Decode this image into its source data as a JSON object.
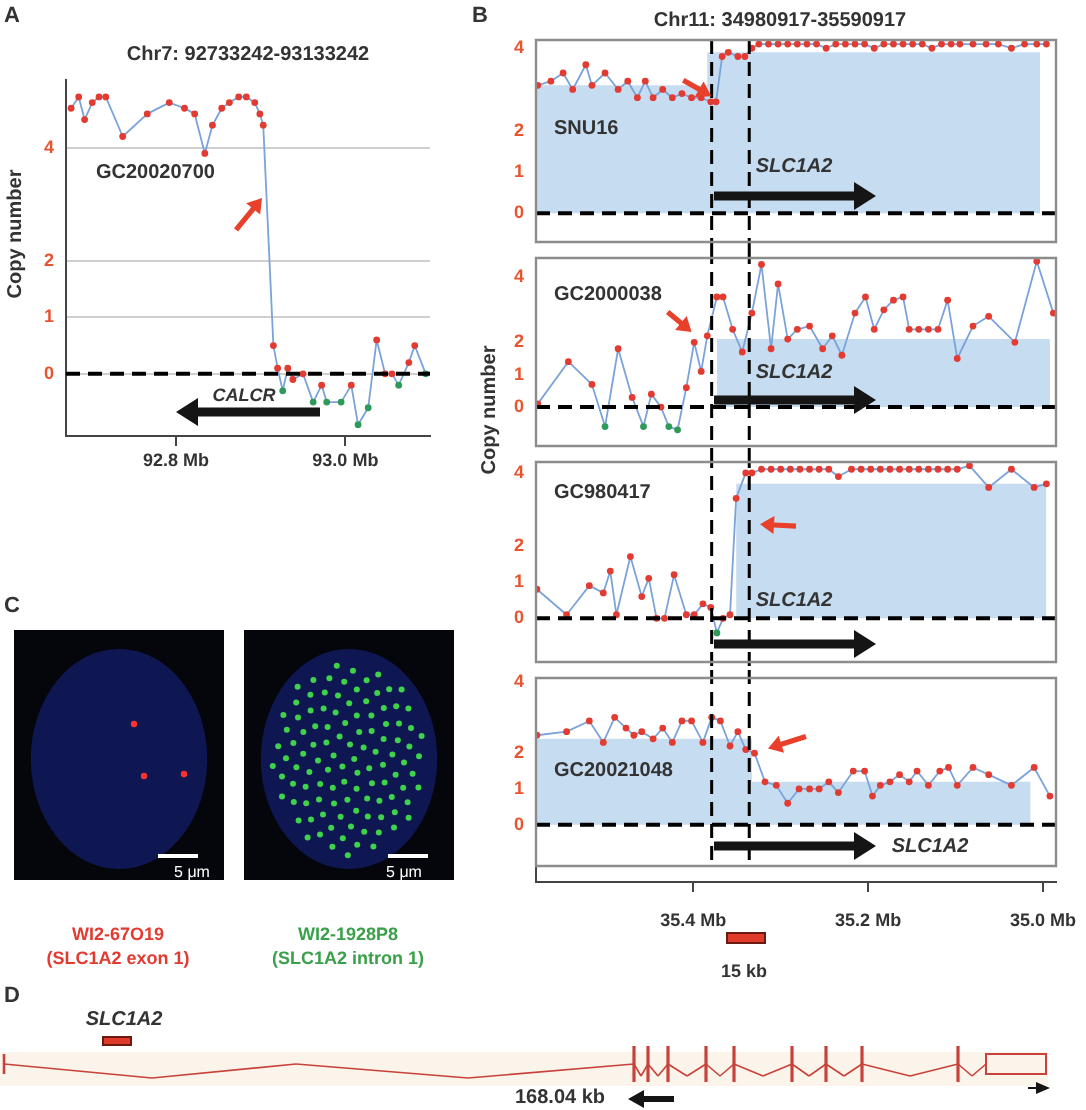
{
  "chart_data": [
    {
      "type": "line",
      "title": "Chr7: 92733242-93133242",
      "ylabel": "Copy number",
      "annotations": [
        "A",
        "GC20020700",
        "CALCR"
      ],
      "xlim": [
        92.67,
        93.1
      ],
      "xticks": [
        {
          "value": 92.8,
          "label": "92.8 Mb"
        },
        {
          "value": 93.0,
          "label": "93.0 Mb"
        }
      ],
      "ylim": [
        -1.1,
        5.2
      ],
      "yticks": [
        0,
        1,
        2,
        4
      ],
      "grid": "y",
      "marker": "circle",
      "ref_lines": [
        {
          "axis": "y",
          "value": 0,
          "color": "#000000",
          "line_style": "dashed"
        }
      ],
      "series": [
        {
          "type": "line",
          "color": "#7ba3d9",
          "x": [
            92.676,
            92.685,
            92.692,
            92.701,
            92.709,
            92.717,
            92.737,
            92.766,
            92.792,
            92.81,
            92.822,
            92.834,
            92.843,
            92.854,
            92.863,
            92.874,
            92.883,
            92.893,
            92.899,
            92.903,
            92.915,
            92.92,
            92.926,
            92.932,
            92.938,
            92.95,
            92.962,
            92.972,
            92.978,
            92.995,
            93.007,
            93.015,
            93.027,
            93.037,
            93.047,
            93.055,
            93.063,
            93.075,
            93.082,
            93.095
          ],
          "values": [
            4.7,
            4.9,
            4.5,
            4.8,
            4.9,
            4.9,
            4.2,
            4.6,
            4.8,
            4.7,
            4.6,
            3.9,
            4.4,
            4.7,
            4.8,
            4.9,
            4.9,
            4.8,
            4.6,
            4.4,
            0.5,
            0.1,
            -0.3,
            0.1,
            -0.1,
            0,
            -0.5,
            -0.2,
            -0.5,
            -0.5,
            -0.2,
            -0.9,
            -0.6,
            0.6,
            0,
            0,
            -0.2,
            0.2,
            0.5,
            0
          ],
          "colors": [
            "#e23b32",
            "#e23b32",
            "#e23b32",
            "#e23b32",
            "#e23b32",
            "#e23b32",
            "#e23b32",
            "#e23b32",
            "#e23b32",
            "#e23b32",
            "#e23b32",
            "#e23b32",
            "#e23b32",
            "#e23b32",
            "#e23b32",
            "#e23b32",
            "#e23b32",
            "#e23b32",
            "#e23b32",
            "#e23b32",
            "#e23b32",
            "#e23b32",
            "#2e9a57",
            "#e23b32",
            "#e23b32",
            "#e23b32",
            "#2e9a57",
            "#e23b32",
            "#2e9a57",
            "#2e9a57",
            "#e23b32",
            "#2e9a57",
            "#2e9a57",
            "#e23b32",
            "#e23b32",
            "#e23b32",
            "#2e9a57",
            "#e23b32",
            "#e23b32",
            "#2e9a57"
          ]
        }
      ]
    },
    {
      "type": "line",
      "title": "Chr11: 34980917-35590917",
      "annotations": [
        "B",
        "SNU16",
        "SLC1A2"
      ],
      "xlim": [
        35.58,
        34.985
      ],
      "tick_labels": "y",
      "ylim": [
        -0.7,
        4.2
      ],
      "yticks": [
        0,
        1,
        2,
        4
      ],
      "ref_lines": [
        {
          "axis": "y",
          "value": 0,
          "color": "#000000",
          "line_style": "dashed"
        },
        {
          "axis": "x",
          "value": 35.379,
          "color": "#000000",
          "line_style": "dashed"
        },
        {
          "axis": "x",
          "value": 35.336,
          "color": "#000000",
          "line_style": "dashed"
        }
      ],
      "series": [
        {
          "type": "area",
          "color": "#c6dcf0",
          "x": [
            35.58,
            35.384,
            35.384,
            35.003
          ],
          "values": [
            3.1,
            3.1,
            3.9,
            3.9
          ]
        },
        {
          "type": "line",
          "color": "#7ba3d9",
          "marker": "circle",
          "x": [
            35.578,
            35.563,
            35.549,
            35.538,
            35.523,
            35.516,
            35.501,
            35.486,
            35.475,
            35.464,
            35.455,
            35.446,
            35.435,
            35.424,
            35.413,
            35.402,
            35.391,
            35.38,
            35.374,
            35.367,
            35.36,
            35.349,
            35.341,
            35.333,
            35.325,
            35.314,
            35.303,
            35.292,
            35.281,
            35.27,
            35.259,
            35.248,
            35.237,
            35.226,
            35.215,
            35.204,
            35.193,
            35.182,
            35.171,
            35.16,
            35.149,
            35.138,
            35.127,
            35.116,
            35.105,
            35.095,
            35.08,
            35.065,
            35.051,
            35.036,
            35.021,
            35.007,
            34.996
          ],
          "values": [
            3.1,
            3.2,
            3.4,
            3.0,
            3.6,
            3.1,
            3.4,
            3.0,
            3.2,
            2.8,
            3.2,
            2.8,
            3.0,
            2.8,
            2.9,
            2.8,
            2.8,
            2.7,
            2.7,
            3.8,
            3.9,
            3.8,
            3.8,
            4.0,
            4.1,
            4.1,
            4.1,
            4.1,
            4.1,
            4.1,
            4.1,
            4.0,
            4.1,
            4.1,
            4.1,
            4.1,
            4.0,
            4.1,
            4.1,
            4.1,
            4.1,
            4.1,
            4.0,
            4.1,
            4.1,
            4.1,
            4.1,
            4.1,
            4.1,
            4.0,
            4.1,
            4.1,
            4.1
          ],
          "colors": [
            "#e23b32",
            "#e23b32",
            "#e23b32",
            "#e23b32",
            "#e23b32",
            "#e23b32",
            "#e23b32",
            "#e23b32",
            "#e23b32",
            "#e23b32",
            "#e23b32",
            "#e23b32",
            "#e23b32",
            "#e23b32",
            "#e23b32",
            "#e23b32",
            "#e23b32",
            "#e23b32",
            "#e23b32",
            "#e23b32",
            "#e23b32",
            "#e23b32",
            "#e23b32",
            "#e23b32",
            "#e23b32",
            "#e23b32",
            "#e23b32",
            "#e23b32",
            "#e23b32",
            "#e23b32",
            "#e23b32",
            "#e23b32",
            "#e23b32",
            "#e23b32",
            "#e23b32",
            "#e23b32",
            "#e23b32",
            "#e23b32",
            "#e23b32",
            "#e23b32",
            "#e23b32",
            "#e23b32",
            "#e23b32",
            "#e23b32",
            "#e23b32",
            "#e23b32",
            "#e23b32",
            "#e23b32",
            "#e23b32",
            "#e23b32",
            "#e23b32",
            "#e23b32",
            "#e23b32"
          ]
        }
      ]
    },
    {
      "type": "line",
      "ylabel": "Copy number",
      "annotations": [
        "GC2000038",
        "SLC1A2"
      ],
      "xlim": [
        35.58,
        34.985
      ],
      "tick_labels": "y",
      "ylim": [
        -1.2,
        4.6
      ],
      "yticks": [
        0,
        1,
        2,
        4
      ],
      "ref_lines": [
        {
          "axis": "y",
          "value": 0,
          "color": "#000000",
          "line_style": "dashed"
        },
        {
          "axis": "x",
          "value": 35.379,
          "color": "#000000",
          "line_style": "dashed"
        },
        {
          "axis": "x",
          "value": 35.336,
          "color": "#000000",
          "line_style": "dashed"
        }
      ],
      "series": [
        {
          "type": "area",
          "color": "#c6dcf0",
          "x": [
            35.373,
            34.992
          ],
          "values": [
            2.1,
            2.1
          ]
        },
        {
          "type": "line",
          "color": "#7ba3d9",
          "marker": "circle",
          "x": [
            35.578,
            35.543,
            35.516,
            35.501,
            35.486,
            35.47,
            35.457,
            35.448,
            35.437,
            35.428,
            35.418,
            35.408,
            35.399,
            35.391,
            35.384,
            35.373,
            35.366,
            35.355,
            35.344,
            35.333,
            35.322,
            35.311,
            35.303,
            35.292,
            35.281,
            35.267,
            35.252,
            35.241,
            35.23,
            35.215,
            35.203,
            35.193,
            35.182,
            35.171,
            35.16,
            35.153,
            35.142,
            35.131,
            35.12,
            35.109,
            35.098,
            35.08,
            35.062,
            35.032,
            35.007,
            34.988
          ],
          "values": [
            0.1,
            1.4,
            0.7,
            -0.6,
            1.8,
            0.3,
            -0.6,
            0.4,
            0,
            -0.6,
            -0.7,
            0.6,
            2.0,
            1.1,
            2.2,
            3.4,
            3.4,
            2.4,
            1.7,
            2.9,
            4.4,
            1.8,
            3.8,
            2.1,
            2.4,
            2.5,
            1.8,
            2.2,
            1.6,
            2.9,
            3.4,
            2.4,
            3.0,
            3.3,
            3.4,
            2.4,
            2.4,
            2.4,
            2.4,
            3.3,
            1.5,
            2.5,
            2.8,
            2.0,
            4.5,
            2.9
          ],
          "colors": [
            "#e23b32",
            "#e23b32",
            "#e23b32",
            "#2e9a57",
            "#e23b32",
            "#e23b32",
            "#2e9a57",
            "#e23b32",
            "#e23b32",
            "#2e9a57",
            "#2e9a57",
            "#e23b32",
            "#e23b32",
            "#e23b32",
            "#e23b32",
            "#e23b32",
            "#e23b32",
            "#e23b32",
            "#e23b32",
            "#e23b32",
            "#e23b32",
            "#e23b32",
            "#e23b32",
            "#e23b32",
            "#e23b32",
            "#e23b32",
            "#e23b32",
            "#e23b32",
            "#e23b32",
            "#e23b32",
            "#e23b32",
            "#e23b32",
            "#e23b32",
            "#e23b32",
            "#e23b32",
            "#e23b32",
            "#e23b32",
            "#e23b32",
            "#e23b32",
            "#e23b32",
            "#e23b32",
            "#e23b32",
            "#e23b32",
            "#e23b32",
            "#e23b32",
            "#e23b32"
          ]
        }
      ]
    },
    {
      "type": "line",
      "annotations": [
        "GC980417",
        "SLC1A2"
      ],
      "xlim": [
        35.58,
        34.985
      ],
      "tick_labels": "y",
      "ylim": [
        -1.2,
        4.3
      ],
      "yticks": [
        0,
        1,
        2,
        4
      ],
      "ref_lines": [
        {
          "axis": "y",
          "value": 0,
          "color": "#000000",
          "line_style": "dashed"
        },
        {
          "axis": "x",
          "value": 35.379,
          "color": "#000000",
          "line_style": "dashed"
        },
        {
          "axis": "x",
          "value": 35.336,
          "color": "#000000",
          "line_style": "dashed"
        }
      ],
      "series": [
        {
          "type": "area",
          "color": "#c6dcf0",
          "x": [
            35.351,
            34.996
          ],
          "values": [
            3.7,
            3.7
          ]
        },
        {
          "type": "line",
          "color": "#7ba3d9",
          "marker": "circle",
          "x": [
            35.579,
            35.545,
            35.519,
            35.503,
            35.495,
            35.488,
            35.472,
            35.459,
            35.451,
            35.442,
            35.433,
            35.422,
            35.408,
            35.399,
            35.389,
            35.38,
            35.373,
            35.366,
            35.358,
            35.351,
            35.34,
            35.333,
            35.322,
            35.311,
            35.3,
            35.289,
            35.278,
            35.267,
            35.256,
            35.245,
            35.234,
            35.219,
            35.208,
            35.197,
            35.186,
            35.175,
            35.164,
            35.153,
            35.142,
            35.131,
            35.12,
            35.109,
            35.098,
            35.084,
            35.062,
            35.036,
            35.01,
            34.996
          ],
          "values": [
            0.8,
            0.1,
            0.9,
            0.7,
            1.3,
            0.1,
            1.7,
            0.6,
            1.1,
            0,
            0,
            1.2,
            0.1,
            0.1,
            0.4,
            0.3,
            -0.4,
            0,
            0.1,
            3.3,
            4.0,
            4.0,
            4.1,
            4.1,
            4.1,
            4.1,
            4.1,
            4.1,
            4.1,
            4.1,
            3.9,
            4.1,
            4.1,
            4.1,
            4.1,
            4.1,
            4.1,
            4.1,
            4.1,
            4.1,
            4.1,
            4.1,
            4.1,
            4.2,
            3.6,
            4.1,
            3.6,
            3.7
          ],
          "colors": [
            "#e23b32",
            "#e23b32",
            "#e23b32",
            "#e23b32",
            "#e23b32",
            "#e23b32",
            "#e23b32",
            "#e23b32",
            "#e23b32",
            "#e23b32",
            "#e23b32",
            "#e23b32",
            "#e23b32",
            "#e23b32",
            "#e23b32",
            "#e23b32",
            "#2e9a57",
            "#e23b32",
            "#e23b32",
            "#e23b32",
            "#e23b32",
            "#e23b32",
            "#e23b32",
            "#e23b32",
            "#e23b32",
            "#e23b32",
            "#e23b32",
            "#e23b32",
            "#e23b32",
            "#e23b32",
            "#e23b32",
            "#e23b32",
            "#e23b32",
            "#e23b32",
            "#e23b32",
            "#e23b32",
            "#e23b32",
            "#e23b32",
            "#e23b32",
            "#e23b32",
            "#e23b32",
            "#e23b32",
            "#e23b32",
            "#e23b32",
            "#e23b32",
            "#e23b32",
            "#e23b32",
            "#e23b32"
          ]
        }
      ]
    },
    {
      "type": "line",
      "annotations": [
        "GC20021048",
        "SLC1A2",
        "15 kb"
      ],
      "xlim": [
        35.58,
        34.985
      ],
      "xticks": [
        {
          "value": 35.4,
          "label": "35.4 Mb"
        },
        {
          "value": 35.2,
          "label": "35.2 Mb"
        },
        {
          "value": 35.0,
          "label": "35.0 Mb"
        }
      ],
      "ylim": [
        -1.6,
        4.1
      ],
      "yticks": [
        0,
        1,
        2,
        4
      ],
      "ref_lines": [
        {
          "axis": "y",
          "value": 0,
          "color": "#000000",
          "line_style": "dashed"
        },
        {
          "axis": "x",
          "value": 35.379,
          "color": "#000000",
          "line_style": "dashed"
        },
        {
          "axis": "x",
          "value": 35.336,
          "color": "#000000",
          "line_style": "dashed"
        }
      ],
      "series": [
        {
          "type": "area",
          "color": "#c6dcf0",
          "x": [
            35.58,
            35.333,
            35.333,
            35.014
          ],
          "values": [
            2.4,
            2.4,
            1.2,
            1.2
          ]
        },
        {
          "type": "line",
          "color": "#7ba3d9",
          "marker": "circle",
          "x": [
            35.579,
            35.545,
            35.519,
            35.503,
            35.49,
            35.477,
            35.468,
            35.459,
            35.446,
            35.435,
            35.424,
            35.413,
            35.402,
            35.389,
            35.379,
            35.369,
            35.358,
            35.349,
            35.34,
            35.33,
            35.318,
            35.305,
            35.292,
            35.279,
            35.267,
            35.256,
            35.245,
            35.234,
            35.217,
            35.204,
            35.195,
            35.186,
            35.175,
            35.164,
            35.153,
            35.144,
            35.131,
            35.118,
            35.108,
            35.098,
            35.08,
            35.062,
            35.036,
            35.01,
            34.992
          ],
          "values": [
            2.5,
            2.6,
            2.9,
            2.3,
            3.0,
            2.7,
            2.5,
            2.6,
            2.4,
            2.7,
            2.3,
            2.9,
            2.9,
            2.3,
            3.0,
            2.9,
            2.2,
            2.6,
            2.1,
            2.0,
            1.2,
            1.1,
            0.6,
            1.0,
            1.0,
            1.0,
            1.2,
            0.9,
            1.5,
            1.5,
            0.8,
            1.1,
            1.2,
            1.4,
            1.2,
            1.5,
            1.1,
            1.5,
            1.6,
            1.1,
            1.6,
            1.4,
            1.1,
            1.6,
            0.8
          ],
          "colors": [
            "#e23b32",
            "#e23b32",
            "#e23b32",
            "#e23b32",
            "#e23b32",
            "#e23b32",
            "#e23b32",
            "#e23b32",
            "#e23b32",
            "#e23b32",
            "#e23b32",
            "#e23b32",
            "#e23b32",
            "#e23b32",
            "#e23b32",
            "#e23b32",
            "#e23b32",
            "#e23b32",
            "#e23b32",
            "#e23b32",
            "#e23b32",
            "#e23b32",
            "#e23b32",
            "#e23b32",
            "#e23b32",
            "#e23b32",
            "#e23b32",
            "#e23b32",
            "#e23b32",
            "#e23b32",
            "#e23b32",
            "#e23b32",
            "#e23b32",
            "#e23b32",
            "#e23b32",
            "#e23b32",
            "#e23b32",
            "#e23b32",
            "#e23b32",
            "#e23b32",
            "#e23b32",
            "#e23b32",
            "#e23b32",
            "#e23b32",
            "#e23b32"
          ]
        }
      ]
    },
    {
      "type": "other",
      "annotations": [
        "C",
        "5 μm",
        "5 μm",
        "WI2-67O19",
        "(SLC1A2 exon 1)",
        "WI2-1928P8",
        "(SLC1A2 intron 1)"
      ]
    },
    {
      "type": "other",
      "annotations": [
        "D",
        "SLC1A2",
        "168.04 kb"
      ]
    }
  ]
}
